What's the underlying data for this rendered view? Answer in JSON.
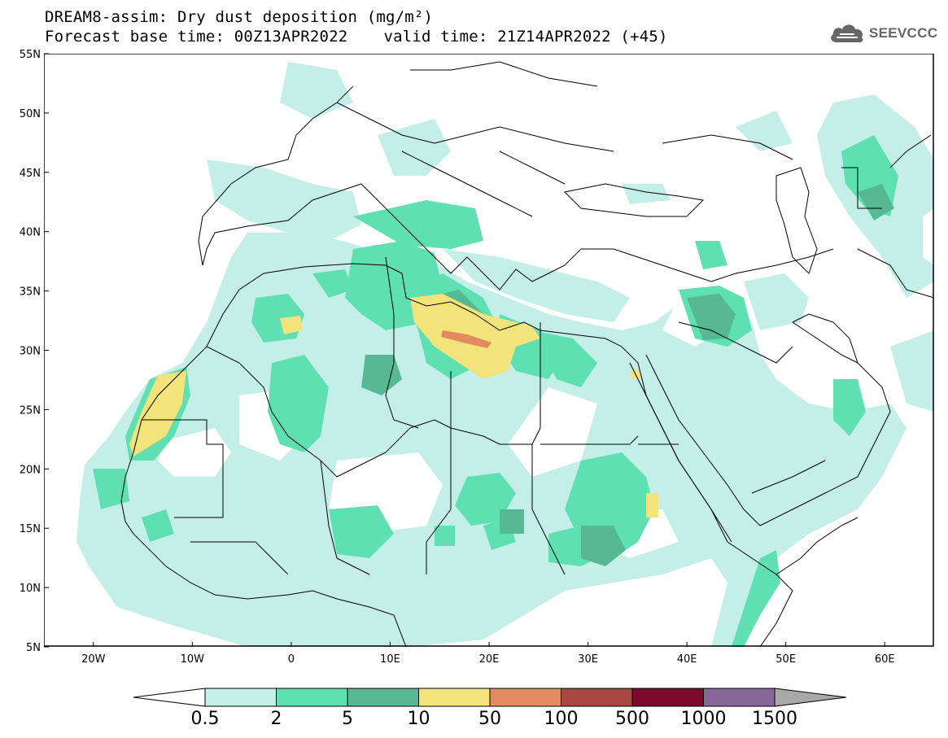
{
  "title": {
    "line1": "DREAM8-assim: Dry dust deposition (mg/m²)",
    "base_time": "Forecast base time: 00Z13APR2022",
    "valid_time": "valid time: 21Z14APR2022 (+45)"
  },
  "logo": {
    "icon": "cloud-icon",
    "text": "SEEVCCC"
  },
  "map": {
    "projection": "lat-lon",
    "lon_range": [
      -25,
      65
    ],
    "lat_range": [
      5,
      55
    ],
    "lat_labels": [
      "55N",
      "50N",
      "45N",
      "40N",
      "35N",
      "30N",
      "25N",
      "20N",
      "15N",
      "10N",
      "5N"
    ],
    "lon_labels": [
      "20W",
      "10W",
      "0",
      "10E",
      "20E",
      "30E",
      "40E",
      "50E",
      "60E"
    ],
    "ocean_color": "#ffffff",
    "coastline_color": "#000000"
  },
  "legend": {
    "labels": [
      "0.5",
      "2",
      "5",
      "10",
      "50",
      "100",
      "500",
      "1000",
      "1500"
    ],
    "colors": [
      "#c3efe8",
      "#5fe0b3",
      "#56b993",
      "#f2e47a",
      "#e48a62",
      "#a94843",
      "#7d0a2d",
      "#87669a",
      "#a9a9a9"
    ],
    "under_color": "#ffffff"
  }
}
